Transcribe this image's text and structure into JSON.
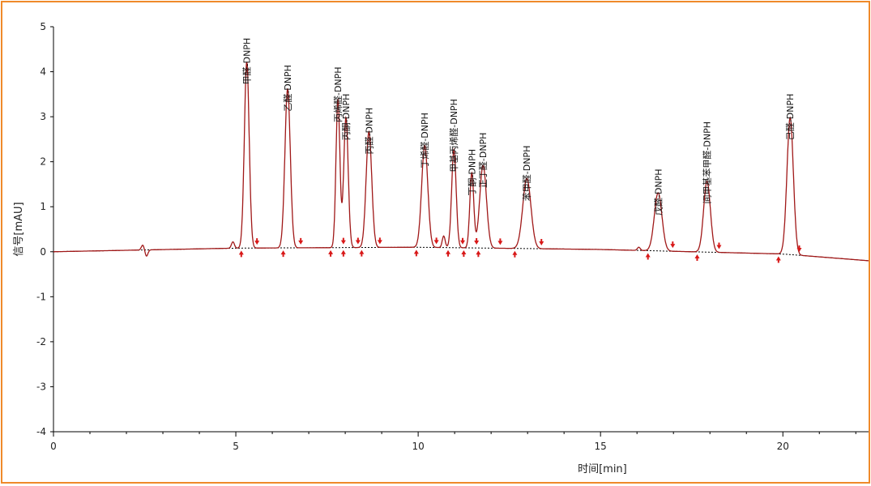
{
  "chart_data": {
    "type": "line",
    "title": "",
    "xlabel": "时间[min]",
    "ylabel": "信号[mAU]",
    "xlim": [
      0,
      22.35
    ],
    "ylim": [
      -4,
      5
    ],
    "xticks": [
      0,
      5,
      10,
      15,
      20
    ],
    "yticks": [
      -4,
      -3,
      -2,
      -1,
      0,
      1,
      2,
      3,
      4,
      5
    ],
    "grid": false,
    "colors": {
      "trace": "#a01818",
      "marker": "#d81818",
      "baseline": "#000000",
      "border": "#ef8a2a"
    },
    "baseline": {
      "x": [
        0,
        5,
        10,
        15,
        20,
        22.35
      ],
      "y": [
        0.0,
        0.08,
        0.1,
        0.05,
        -0.05,
        -0.2
      ]
    },
    "small_features": [
      {
        "x": 2.45,
        "y": 0.15
      },
      {
        "x": 2.55,
        "y": -0.1
      },
      {
        "x": 4.92,
        "y": 0.22
      },
      {
        "x": 10.7,
        "y": 0.35
      },
      {
        "x": 16.05,
        "y": 0.1
      }
    ],
    "peaks": [
      {
        "label": "甲醛-DNPH",
        "rt": 5.3,
        "height": 4.22,
        "start": 5.15,
        "end": 5.58
      },
      {
        "label": "乙醛-DNPH",
        "rt": 6.42,
        "height": 3.62,
        "start": 6.3,
        "end": 6.78
      },
      {
        "label": "丙烯醛-DNPH",
        "rt": 7.8,
        "height": 3.38,
        "start": 7.6,
        "end": 7.95
      },
      {
        "label": "丙酮-DNPH",
        "rt": 8.02,
        "height": 2.98,
        "start": 7.95,
        "end": 8.35
      },
      {
        "label": "丙醛-DNPH",
        "rt": 8.65,
        "height": 2.67,
        "start": 8.45,
        "end": 8.95
      },
      {
        "label": "丁烯醛-DNPH",
        "rt": 10.18,
        "height": 2.36,
        "start": 9.95,
        "end": 10.5
      },
      {
        "label": "甲基丙烯醛-DNPH",
        "rt": 10.98,
        "height": 2.27,
        "start": 10.82,
        "end": 11.22
      },
      {
        "label": "丁酮-DNPH",
        "rt": 11.47,
        "height": 1.75,
        "start": 11.25,
        "end": 11.6
      },
      {
        "label": "正丁醛-DNPH",
        "rt": 11.78,
        "height": 1.92,
        "start": 11.65,
        "end": 12.25
      },
      {
        "label": "苯甲醛-DNPH",
        "rt": 12.98,
        "height": 1.63,
        "start": 12.65,
        "end": 13.38
      },
      {
        "label": "戊醛-DNPH",
        "rt": 16.58,
        "height": 1.31,
        "start": 16.3,
        "end": 16.98
      },
      {
        "label": "间甲基苯甲醛-DNPH",
        "rt": 17.92,
        "height": 1.57,
        "start": 17.65,
        "end": 18.25
      },
      {
        "label": "己醛-DNPH",
        "rt": 20.2,
        "height": 2.98,
        "start": 19.88,
        "end": 20.45
      }
    ]
  }
}
